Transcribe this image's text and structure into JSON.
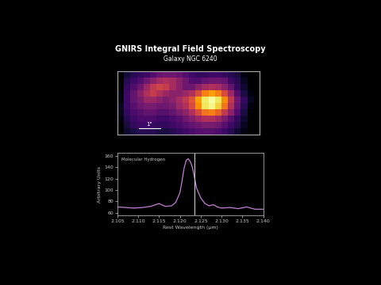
{
  "chart_data": [
    {
      "type": "heatmap",
      "title": "GNIRS Integral Field Spectroscopy",
      "subtitle": "Galaxy NGC 6240",
      "tick_labels": false,
      "annotations": [
        "1\""
      ],
      "cells": [
        [
          null,
          0.35,
          0.38,
          0.4,
          0.42,
          0.45,
          0.48,
          0.5,
          0.5,
          0.48,
          0.45,
          0.42,
          0.4,
          0.4,
          0.42,
          0.42,
          0.4,
          0.38,
          0.36,
          0.3,
          null,
          null
        ],
        [
          null,
          0.38,
          0.42,
          0.45,
          0.5,
          0.55,
          0.6,
          0.62,
          0.6,
          0.55,
          0.5,
          0.45,
          0.45,
          0.48,
          0.5,
          0.5,
          0.48,
          0.42,
          0.38,
          0.32,
          null,
          null
        ],
        [
          null,
          0.4,
          0.45,
          0.5,
          0.58,
          0.65,
          0.68,
          0.66,
          0.6,
          0.55,
          0.5,
          0.5,
          0.55,
          0.6,
          0.62,
          0.6,
          0.55,
          0.48,
          0.4,
          0.34,
          0.28,
          null
        ],
        [
          0.3,
          0.42,
          0.48,
          0.55,
          0.62,
          0.66,
          0.62,
          0.58,
          0.55,
          0.55,
          0.58,
          0.62,
          0.7,
          0.8,
          0.85,
          0.8,
          0.7,
          0.58,
          0.45,
          0.36,
          0.3,
          null
        ],
        [
          0.3,
          0.42,
          0.48,
          0.52,
          0.58,
          0.58,
          0.55,
          0.52,
          0.55,
          0.6,
          0.65,
          0.72,
          0.85,
          0.96,
          1.0,
          0.95,
          0.82,
          0.65,
          0.5,
          0.4,
          0.32,
          null
        ],
        [
          0.32,
          0.42,
          0.46,
          0.5,
          0.52,
          0.52,
          0.5,
          0.5,
          0.52,
          0.58,
          0.62,
          0.7,
          0.82,
          0.95,
          0.98,
          0.92,
          0.78,
          0.62,
          0.48,
          0.38,
          0.3,
          null
        ],
        [
          0.32,
          0.4,
          0.44,
          0.46,
          0.48,
          0.48,
          0.46,
          0.46,
          0.48,
          0.52,
          0.56,
          0.62,
          0.7,
          0.78,
          0.8,
          0.75,
          0.65,
          0.55,
          0.45,
          0.36,
          null,
          null
        ],
        [
          0.3,
          0.38,
          0.42,
          0.44,
          0.44,
          0.44,
          0.42,
          0.42,
          0.44,
          0.46,
          0.5,
          0.54,
          0.58,
          0.62,
          0.62,
          0.58,
          0.52,
          0.46,
          0.4,
          0.34,
          null,
          null
        ],
        [
          null,
          0.36,
          0.4,
          0.42,
          0.42,
          0.4,
          0.4,
          0.4,
          0.42,
          0.44,
          0.46,
          0.48,
          0.5,
          0.52,
          0.52,
          0.5,
          0.46,
          0.42,
          0.38,
          0.32,
          null,
          null
        ],
        [
          null,
          0.34,
          0.36,
          0.38,
          0.38,
          0.38,
          0.36,
          0.36,
          0.38,
          0.4,
          0.42,
          0.44,
          0.46,
          0.46,
          0.46,
          0.44,
          0.42,
          0.38,
          0.34,
          0.3,
          null,
          null
        ]
      ]
    },
    {
      "type": "line",
      "xlabel": "Rest Wavelength (μm)",
      "ylabel": "Arbitrary Units",
      "annotations": [
        "Molecular Hydrogen"
      ],
      "color": "#c77dd8",
      "reference_wavelength": 2.1235,
      "x": [
        2.105,
        2.107,
        2.109,
        2.111,
        2.113,
        2.115,
        2.1165,
        2.118,
        2.119,
        2.12,
        2.1205,
        2.121,
        2.1215,
        2.122,
        2.1225,
        2.123,
        2.1235,
        2.124,
        2.125,
        2.126,
        2.127,
        2.128,
        2.129,
        2.13,
        2.132,
        2.134,
        2.136,
        2.138,
        2.14
      ],
      "values": [
        70,
        69,
        68,
        69,
        71,
        76,
        71,
        72,
        78,
        95,
        115,
        138,
        152,
        155,
        150,
        140,
        122,
        103,
        86,
        76,
        72,
        74,
        70,
        68,
        69,
        67,
        70,
        66,
        66
      ],
      "xlim": [
        2.105,
        2.14
      ],
      "ylim": [
        55,
        165
      ],
      "xticks": [
        2.105,
        {
          "value": 2.11,
          "label": "2.110"
        },
        2.115,
        {
          "value": 2.12,
          "label": "2.120"
        },
        2.125,
        {
          "value": 2.13,
          "label": "2.130"
        },
        2.135,
        {
          "value": 2.14,
          "label": "2.140"
        }
      ],
      "yticks": [
        60,
        80,
        100,
        120,
        140,
        160
      ]
    }
  ]
}
